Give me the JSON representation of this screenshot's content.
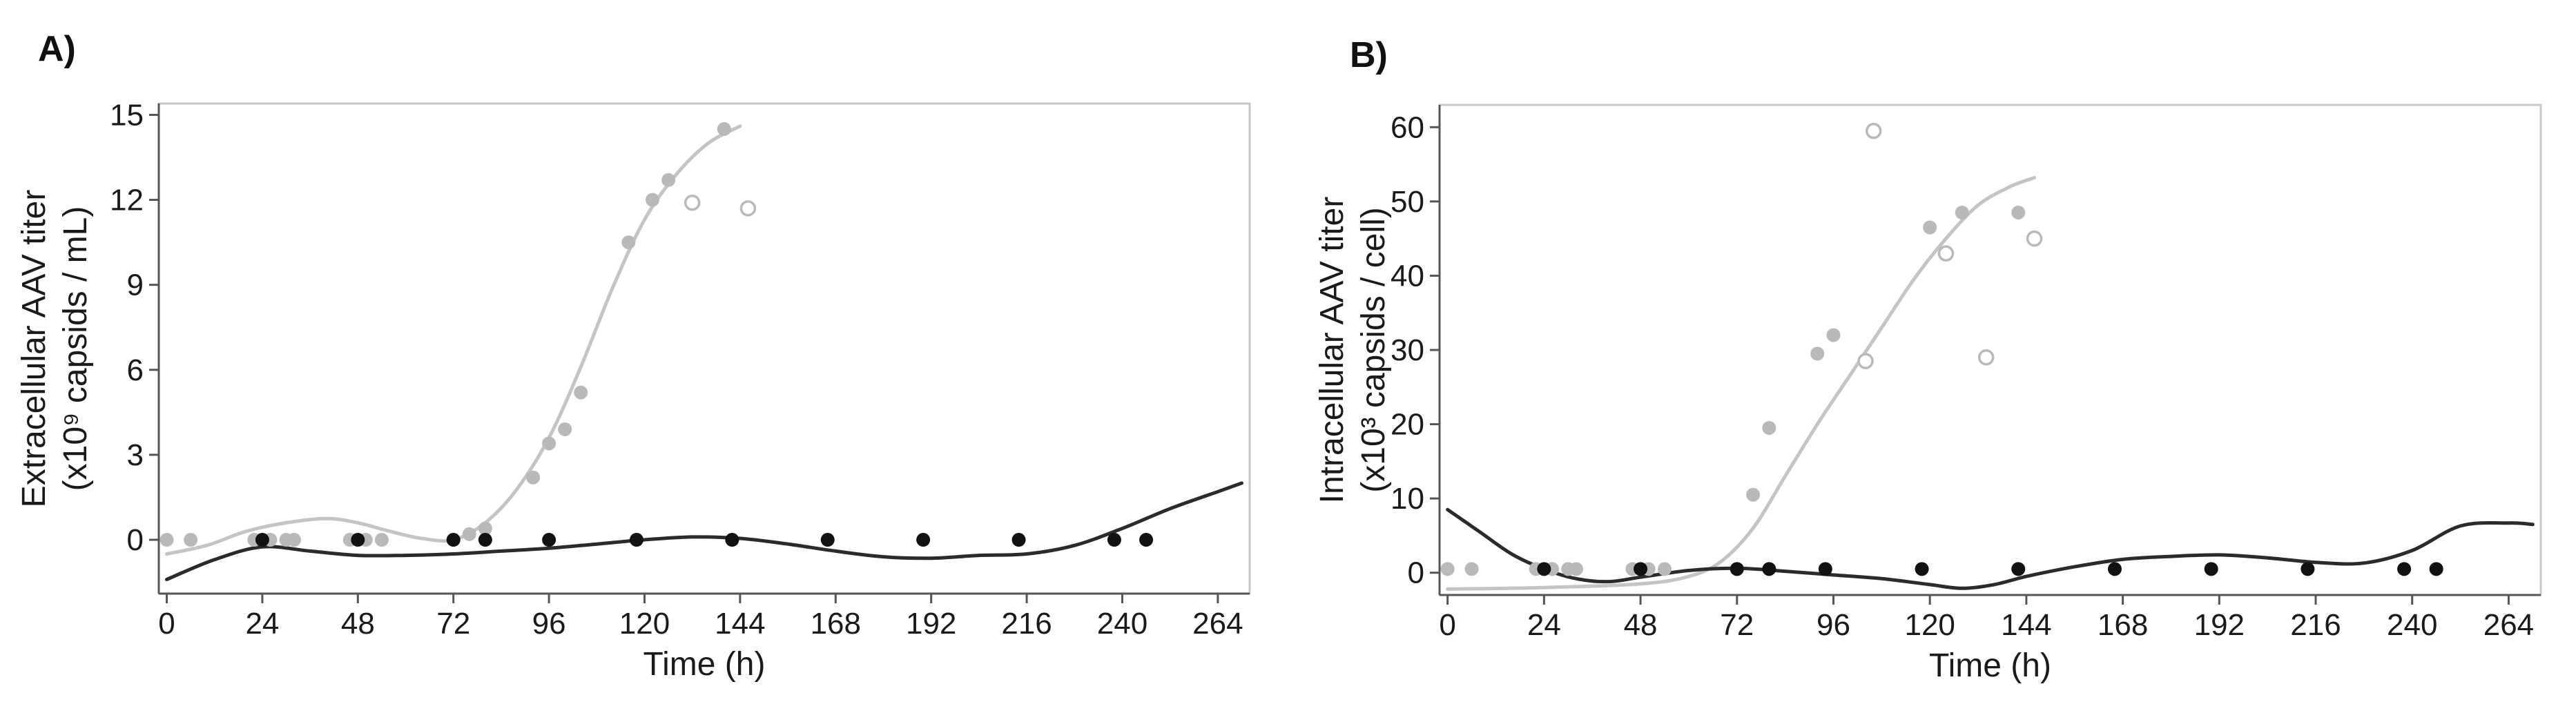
{
  "colors": {
    "gray_series": "#b9b9b9",
    "black_series": "#111111",
    "gray_curve": "#c4c4c4",
    "black_curve": "#2b2b2b",
    "frame": "#c8c8c8",
    "axis": "#555555"
  },
  "chart_data": [
    {
      "panel_label": "A)",
      "type": "scatter",
      "xlabel": "Time (h)",
      "ylabel_line1": "Extracellular AAV titer",
      "ylabel_line2": "(x10⁹ capsids / mL)",
      "xlim": [
        -2,
        272
      ],
      "ylim": [
        -1.9,
        15.4
      ],
      "xticks": [
        0,
        24,
        48,
        72,
        96,
        120,
        144,
        168,
        192,
        216,
        240,
        264
      ],
      "xtick_labels": [
        "0",
        "24",
        "48",
        "72",
        "96",
        "120",
        "144",
        "168",
        "192",
        "216",
        "240",
        "264"
      ],
      "yticks": [
        0,
        3,
        6,
        9,
        12,
        15
      ],
      "ytick_labels": [
        "0",
        "3",
        "6",
        "9",
        "12",
        "15"
      ],
      "series": [
        {
          "name": "gray filled",
          "marker": "filled",
          "color_key": "gray_series",
          "points": [
            [
              0,
              0
            ],
            [
              6,
              0
            ],
            [
              22,
              0
            ],
            [
              26,
              0
            ],
            [
              30,
              0
            ],
            [
              32,
              0
            ],
            [
              46,
              0
            ],
            [
              50,
              0
            ],
            [
              54,
              0
            ],
            [
              72,
              0
            ],
            [
              76,
              0.2
            ],
            [
              80,
              0.4
            ],
            [
              92,
              2.2
            ],
            [
              96,
              3.4
            ],
            [
              100,
              3.9
            ],
            [
              104,
              5.2
            ],
            [
              116,
              10.5
            ],
            [
              122,
              12
            ],
            [
              126,
              12.7
            ],
            [
              140,
              14.5
            ]
          ]
        },
        {
          "name": "gray open",
          "marker": "open",
          "color_key": "gray_series",
          "points": [
            [
              132,
              11.9
            ],
            [
              146,
              11.7
            ]
          ]
        },
        {
          "name": "black filled",
          "marker": "filled",
          "color_key": "black_series",
          "points": [
            [
              24,
              0
            ],
            [
              48,
              0
            ],
            [
              72,
              0
            ],
            [
              80,
              0
            ],
            [
              96,
              0
            ],
            [
              118,
              0
            ],
            [
              142,
              0
            ],
            [
              166,
              0
            ],
            [
              190,
              0
            ],
            [
              214,
              0
            ],
            [
              238,
              0
            ],
            [
              246,
              0
            ]
          ]
        }
      ],
      "curves": [
        {
          "name": "gray fit",
          "color_key": "gray_curve",
          "points": [
            [
              0,
              -0.5
            ],
            [
              10,
              -0.2
            ],
            [
              20,
              0.3
            ],
            [
              30,
              0.6
            ],
            [
              40,
              0.75
            ],
            [
              48,
              0.6
            ],
            [
              56,
              0.3
            ],
            [
              64,
              0.05
            ],
            [
              72,
              0
            ],
            [
              80,
              0.6
            ],
            [
              88,
              1.8
            ],
            [
              96,
              3.6
            ],
            [
              104,
              6.1
            ],
            [
              112,
              8.9
            ],
            [
              120,
              11.3
            ],
            [
              128,
              12.9
            ],
            [
              136,
              14
            ],
            [
              144,
              14.6
            ]
          ]
        },
        {
          "name": "black fit",
          "color_key": "black_curve",
          "points": [
            [
              0,
              -1.4
            ],
            [
              12,
              -0.7
            ],
            [
              24,
              -0.25
            ],
            [
              36,
              -0.4
            ],
            [
              48,
              -0.55
            ],
            [
              60,
              -0.55
            ],
            [
              72,
              -0.5
            ],
            [
              84,
              -0.4
            ],
            [
              96,
              -0.3
            ],
            [
              108,
              -0.15
            ],
            [
              120,
              0
            ],
            [
              132,
              0.1
            ],
            [
              144,
              0.05
            ],
            [
              156,
              -0.15
            ],
            [
              168,
              -0.4
            ],
            [
              180,
              -0.6
            ],
            [
              192,
              -0.65
            ],
            [
              204,
              -0.55
            ],
            [
              216,
              -0.5
            ],
            [
              228,
              -0.2
            ],
            [
              240,
              0.4
            ],
            [
              252,
              1.1
            ],
            [
              264,
              1.7
            ],
            [
              270,
              2.0
            ]
          ]
        }
      ]
    },
    {
      "panel_label": "B)",
      "type": "scatter",
      "xlabel": "Time (h)",
      "ylabel_line1": "Intracellular AAV titer",
      "ylabel_line2": "(x10³ capsids / cell)",
      "xlim": [
        -2,
        272
      ],
      "ylim": [
        -3,
        63
      ],
      "xticks": [
        0,
        24,
        48,
        72,
        96,
        120,
        144,
        168,
        192,
        216,
        240,
        264
      ],
      "xtick_labels": [
        "0",
        "24",
        "48",
        "72",
        "96",
        "120",
        "144",
        "168",
        "192",
        "216",
        "240",
        "264"
      ],
      "yticks": [
        0,
        10,
        20,
        30,
        40,
        50,
        60
      ],
      "ytick_labels": [
        "0",
        "10",
        "20",
        "30",
        "40",
        "50",
        "60"
      ],
      "series": [
        {
          "name": "gray filled",
          "marker": "filled",
          "color_key": "gray_series",
          "points": [
            [
              0,
              0.5
            ],
            [
              6,
              0.5
            ],
            [
              22,
              0.5
            ],
            [
              26,
              0.5
            ],
            [
              30,
              0.5
            ],
            [
              32,
              0.5
            ],
            [
              46,
              0.5
            ],
            [
              50,
              0.5
            ],
            [
              54,
              0.5
            ],
            [
              72,
              0.5
            ],
            [
              76,
              10.5
            ],
            [
              80,
              19.5
            ],
            [
              92,
              29.5
            ],
            [
              96,
              32
            ],
            [
              120,
              46.5
            ],
            [
              128,
              48.5
            ],
            [
              142,
              48.5
            ]
          ]
        },
        {
          "name": "gray open",
          "marker": "open",
          "color_key": "gray_series",
          "points": [
            [
              104,
              28.5
            ],
            [
              106,
              59.5
            ],
            [
              124,
              43
            ],
            [
              134,
              29
            ],
            [
              146,
              45
            ]
          ]
        },
        {
          "name": "black filled",
          "marker": "filled",
          "color_key": "black_series",
          "points": [
            [
              24,
              0.5
            ],
            [
              48,
              0.5
            ],
            [
              72,
              0.5
            ],
            [
              80,
              0.5
            ],
            [
              94,
              0.5
            ],
            [
              118,
              0.5
            ],
            [
              142,
              0.5
            ],
            [
              166,
              0.5
            ],
            [
              190,
              0.5
            ],
            [
              214,
              0.5
            ],
            [
              238,
              0.5
            ],
            [
              246,
              0.5
            ]
          ]
        }
      ],
      "curves": [
        {
          "name": "gray fit",
          "color_key": "gray_curve",
          "points": [
            [
              0,
              -2.2
            ],
            [
              24,
              -2
            ],
            [
              48,
              -1.5
            ],
            [
              60,
              -0.5
            ],
            [
              68,
              1.5
            ],
            [
              76,
              6
            ],
            [
              84,
              13
            ],
            [
              92,
              20
            ],
            [
              100,
              26.5
            ],
            [
              108,
              33
            ],
            [
              116,
              39.5
            ],
            [
              124,
              45
            ],
            [
              132,
              49.5
            ],
            [
              140,
              52
            ],
            [
              146,
              53.2
            ]
          ]
        },
        {
          "name": "black fit",
          "color_key": "black_curve",
          "points": [
            [
              0,
              8.5
            ],
            [
              8,
              5.5
            ],
            [
              16,
              2.5
            ],
            [
              24,
              0.5
            ],
            [
              32,
              -0.8
            ],
            [
              40,
              -1.2
            ],
            [
              48,
              -0.6
            ],
            [
              60,
              0.3
            ],
            [
              72,
              0.6
            ],
            [
              84,
              0.2
            ],
            [
              96,
              -0.3
            ],
            [
              108,
              -0.8
            ],
            [
              120,
              -1.6
            ],
            [
              128,
              -2.1
            ],
            [
              136,
              -1.6
            ],
            [
              144,
              -0.5
            ],
            [
              156,
              0.8
            ],
            [
              168,
              1.8
            ],
            [
              180,
              2.2
            ],
            [
              192,
              2.4
            ],
            [
              204,
              2
            ],
            [
              216,
              1.4
            ],
            [
              228,
              1.3
            ],
            [
              240,
              3
            ],
            [
              252,
              6.3
            ],
            [
              264,
              6.7
            ],
            [
              270,
              6.5
            ]
          ]
        }
      ]
    }
  ]
}
